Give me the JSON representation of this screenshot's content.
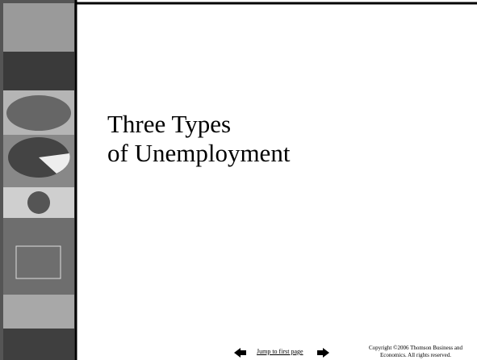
{
  "slide": {
    "title_lines": [
      "Three Types",
      "of Unemployment"
    ],
    "nav": {
      "link": "Jump to first page"
    },
    "copyright": [
      "Copyright ©2006  Thomson Business and",
      "Economics. All rights reserved."
    ]
  }
}
